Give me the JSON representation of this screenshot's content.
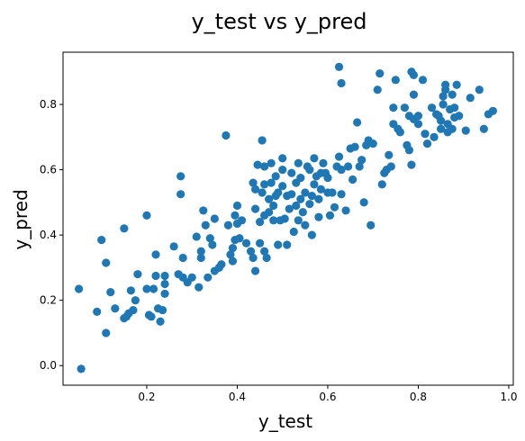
{
  "chart_data": {
    "type": "scatter",
    "title": "y_test vs y_pred",
    "xlabel": "y_test",
    "ylabel": "y_pred",
    "xlim": [
      0.015,
      1.01
    ],
    "ylim": [
      -0.06,
      0.96
    ],
    "xticks": [
      0.2,
      0.4,
      0.6,
      0.8,
      1.0
    ],
    "xtick_labels": [
      "0.2",
      "0.4",
      "0.6",
      "0.8",
      "1.0"
    ],
    "yticks": [
      0.0,
      0.2,
      0.4,
      0.6,
      0.8
    ],
    "ytick_labels": [
      "0.0",
      "0.2",
      "0.4",
      "0.6",
      "0.8"
    ],
    "grid": false,
    "legend": "none",
    "marker_color": "#1f77b4",
    "points": [
      [
        0.05,
        0.235
      ],
      [
        0.055,
        -0.01
      ],
      [
        0.09,
        0.165
      ],
      [
        0.1,
        0.385
      ],
      [
        0.11,
        0.1
      ],
      [
        0.11,
        0.315
      ],
      [
        0.12,
        0.225
      ],
      [
        0.13,
        0.175
      ],
      [
        0.15,
        0.42
      ],
      [
        0.15,
        0.145
      ],
      [
        0.155,
        0.15
      ],
      [
        0.16,
        0.16
      ],
      [
        0.165,
        0.23
      ],
      [
        0.17,
        0.17
      ],
      [
        0.175,
        0.2
      ],
      [
        0.18,
        0.28
      ],
      [
        0.2,
        0.46
      ],
      [
        0.2,
        0.235
      ],
      [
        0.205,
        0.155
      ],
      [
        0.21,
        0.15
      ],
      [
        0.215,
        0.235
      ],
      [
        0.22,
        0.275
      ],
      [
        0.22,
        0.34
      ],
      [
        0.225,
        0.175
      ],
      [
        0.23,
        0.135
      ],
      [
        0.235,
        0.17
      ],
      [
        0.24,
        0.25
      ],
      [
        0.24,
        0.275
      ],
      [
        0.24,
        0.22
      ],
      [
        0.26,
        0.365
      ],
      [
        0.27,
        0.28
      ],
      [
        0.275,
        0.58
      ],
      [
        0.275,
        0.525
      ],
      [
        0.28,
        0.27
      ],
      [
        0.28,
        0.33
      ],
      [
        0.29,
        0.255
      ],
      [
        0.3,
        0.27
      ],
      [
        0.31,
        0.395
      ],
      [
        0.315,
        0.24
      ],
      [
        0.32,
        0.35
      ],
      [
        0.32,
        0.33
      ],
      [
        0.325,
        0.475
      ],
      [
        0.33,
        0.43
      ],
      [
        0.335,
        0.27
      ],
      [
        0.34,
        0.39
      ],
      [
        0.345,
        0.37
      ],
      [
        0.35,
        0.45
      ],
      [
        0.35,
        0.29
      ],
      [
        0.36,
        0.3
      ],
      [
        0.365,
        0.31
      ],
      [
        0.375,
        0.705
      ],
      [
        0.38,
        0.43
      ],
      [
        0.385,
        0.34
      ],
      [
        0.39,
        0.36
      ],
      [
        0.39,
        0.32
      ],
      [
        0.395,
        0.46
      ],
      [
        0.395,
        0.385
      ],
      [
        0.4,
        0.49
      ],
      [
        0.4,
        0.435
      ],
      [
        0.405,
        0.39
      ],
      [
        0.41,
        0.445
      ],
      [
        0.42,
        0.375
      ],
      [
        0.43,
        0.35
      ],
      [
        0.435,
        0.33
      ],
      [
        0.435,
        0.56
      ],
      [
        0.44,
        0.29
      ],
      [
        0.44,
        0.54
      ],
      [
        0.44,
        0.48
      ],
      [
        0.445,
        0.615
      ],
      [
        0.45,
        0.44
      ],
      [
        0.45,
        0.375
      ],
      [
        0.455,
        0.69
      ],
      [
        0.455,
        0.53
      ],
      [
        0.46,
        0.61
      ],
      [
        0.46,
        0.555
      ],
      [
        0.46,
        0.46
      ],
      [
        0.46,
        0.35
      ],
      [
        0.465,
        0.33
      ],
      [
        0.47,
        0.51
      ],
      [
        0.47,
        0.47
      ],
      [
        0.475,
        0.56
      ],
      [
        0.475,
        0.62
      ],
      [
        0.48,
        0.49
      ],
      [
        0.48,
        0.445
      ],
      [
        0.485,
        0.52
      ],
      [
        0.485,
        0.58
      ],
      [
        0.49,
        0.37
      ],
      [
        0.49,
        0.53
      ],
      [
        0.495,
        0.445
      ],
      [
        0.5,
        0.635
      ],
      [
        0.5,
        0.6
      ],
      [
        0.5,
        0.55
      ],
      [
        0.505,
        0.45
      ],
      [
        0.51,
        0.52
      ],
      [
        0.51,
        0.37
      ],
      [
        0.515,
        0.48
      ],
      [
        0.52,
        0.59
      ],
      [
        0.52,
        0.525
      ],
      [
        0.525,
        0.41
      ],
      [
        0.53,
        0.56
      ],
      [
        0.53,
        0.49
      ],
      [
        0.535,
        0.62
      ],
      [
        0.535,
        0.445
      ],
      [
        0.54,
        0.575
      ],
      [
        0.54,
        0.51
      ],
      [
        0.545,
        0.47
      ],
      [
        0.55,
        0.53
      ],
      [
        0.55,
        0.43
      ],
      [
        0.555,
        0.61
      ],
      [
        0.56,
        0.6
      ],
      [
        0.56,
        0.495
      ],
      [
        0.565,
        0.4
      ],
      [
        0.565,
        0.52
      ],
      [
        0.57,
        0.555
      ],
      [
        0.57,
        0.635
      ],
      [
        0.575,
        0.58
      ],
      [
        0.58,
        0.455
      ],
      [
        0.58,
        0.51
      ],
      [
        0.585,
        0.59
      ],
      [
        0.585,
        0.54
      ],
      [
        0.59,
        0.62
      ],
      [
        0.595,
        0.59
      ],
      [
        0.6,
        0.53
      ],
      [
        0.6,
        0.575
      ],
      [
        0.605,
        0.46
      ],
      [
        0.61,
        0.53
      ],
      [
        0.615,
        0.485
      ],
      [
        0.62,
        0.61
      ],
      [
        0.625,
        0.64
      ],
      [
        0.63,
        0.525
      ],
      [
        0.63,
        0.6
      ],
      [
        0.625,
        0.915
      ],
      [
        0.63,
        0.865
      ],
      [
        0.64,
        0.475
      ],
      [
        0.645,
        0.61
      ],
      [
        0.65,
        0.665
      ],
      [
        0.655,
        0.57
      ],
      [
        0.66,
        0.67
      ],
      [
        0.665,
        0.745
      ],
      [
        0.67,
        0.61
      ],
      [
        0.675,
        0.63
      ],
      [
        0.68,
        0.5
      ],
      [
        0.685,
        0.675
      ],
      [
        0.69,
        0.69
      ],
      [
        0.695,
        0.43
      ],
      [
        0.7,
        0.68
      ],
      [
        0.71,
        0.845
      ],
      [
        0.715,
        0.895
      ],
      [
        0.72,
        0.555
      ],
      [
        0.725,
        0.59
      ],
      [
        0.73,
        0.6
      ],
      [
        0.735,
        0.645
      ],
      [
        0.74,
        0.61
      ],
      [
        0.745,
        0.79
      ],
      [
        0.745,
        0.74
      ],
      [
        0.75,
        0.875
      ],
      [
        0.755,
        0.725
      ],
      [
        0.76,
        0.715
      ],
      [
        0.77,
        0.79
      ],
      [
        0.775,
        0.675
      ],
      [
        0.78,
        0.66
      ],
      [
        0.78,
        0.765
      ],
      [
        0.785,
        0.9
      ],
      [
        0.785,
        0.615
      ],
      [
        0.79,
        0.89
      ],
      [
        0.79,
        0.83
      ],
      [
        0.79,
        0.755
      ],
      [
        0.8,
        0.765
      ],
      [
        0.8,
        0.74
      ],
      [
        0.81,
        0.875
      ],
      [
        0.815,
        0.71
      ],
      [
        0.82,
        0.68
      ],
      [
        0.83,
        0.79
      ],
      [
        0.835,
        0.7
      ],
      [
        0.84,
        0.77
      ],
      [
        0.845,
        0.765
      ],
      [
        0.85,
        0.725
      ],
      [
        0.85,
        0.75
      ],
      [
        0.855,
        0.8
      ],
      [
        0.855,
        0.825
      ],
      [
        0.86,
        0.845
      ],
      [
        0.86,
        0.86
      ],
      [
        0.865,
        0.74
      ],
      [
        0.865,
        0.715
      ],
      [
        0.87,
        0.785
      ],
      [
        0.875,
        0.83
      ],
      [
        0.875,
        0.725
      ],
      [
        0.88,
        0.79
      ],
      [
        0.88,
        0.76
      ],
      [
        0.885,
        0.86
      ],
      [
        0.89,
        0.765
      ],
      [
        0.905,
        0.72
      ],
      [
        0.915,
        0.82
      ],
      [
        0.935,
        0.845
      ],
      [
        0.945,
        0.725
      ],
      [
        0.955,
        0.77
      ],
      [
        0.965,
        0.78
      ]
    ]
  }
}
